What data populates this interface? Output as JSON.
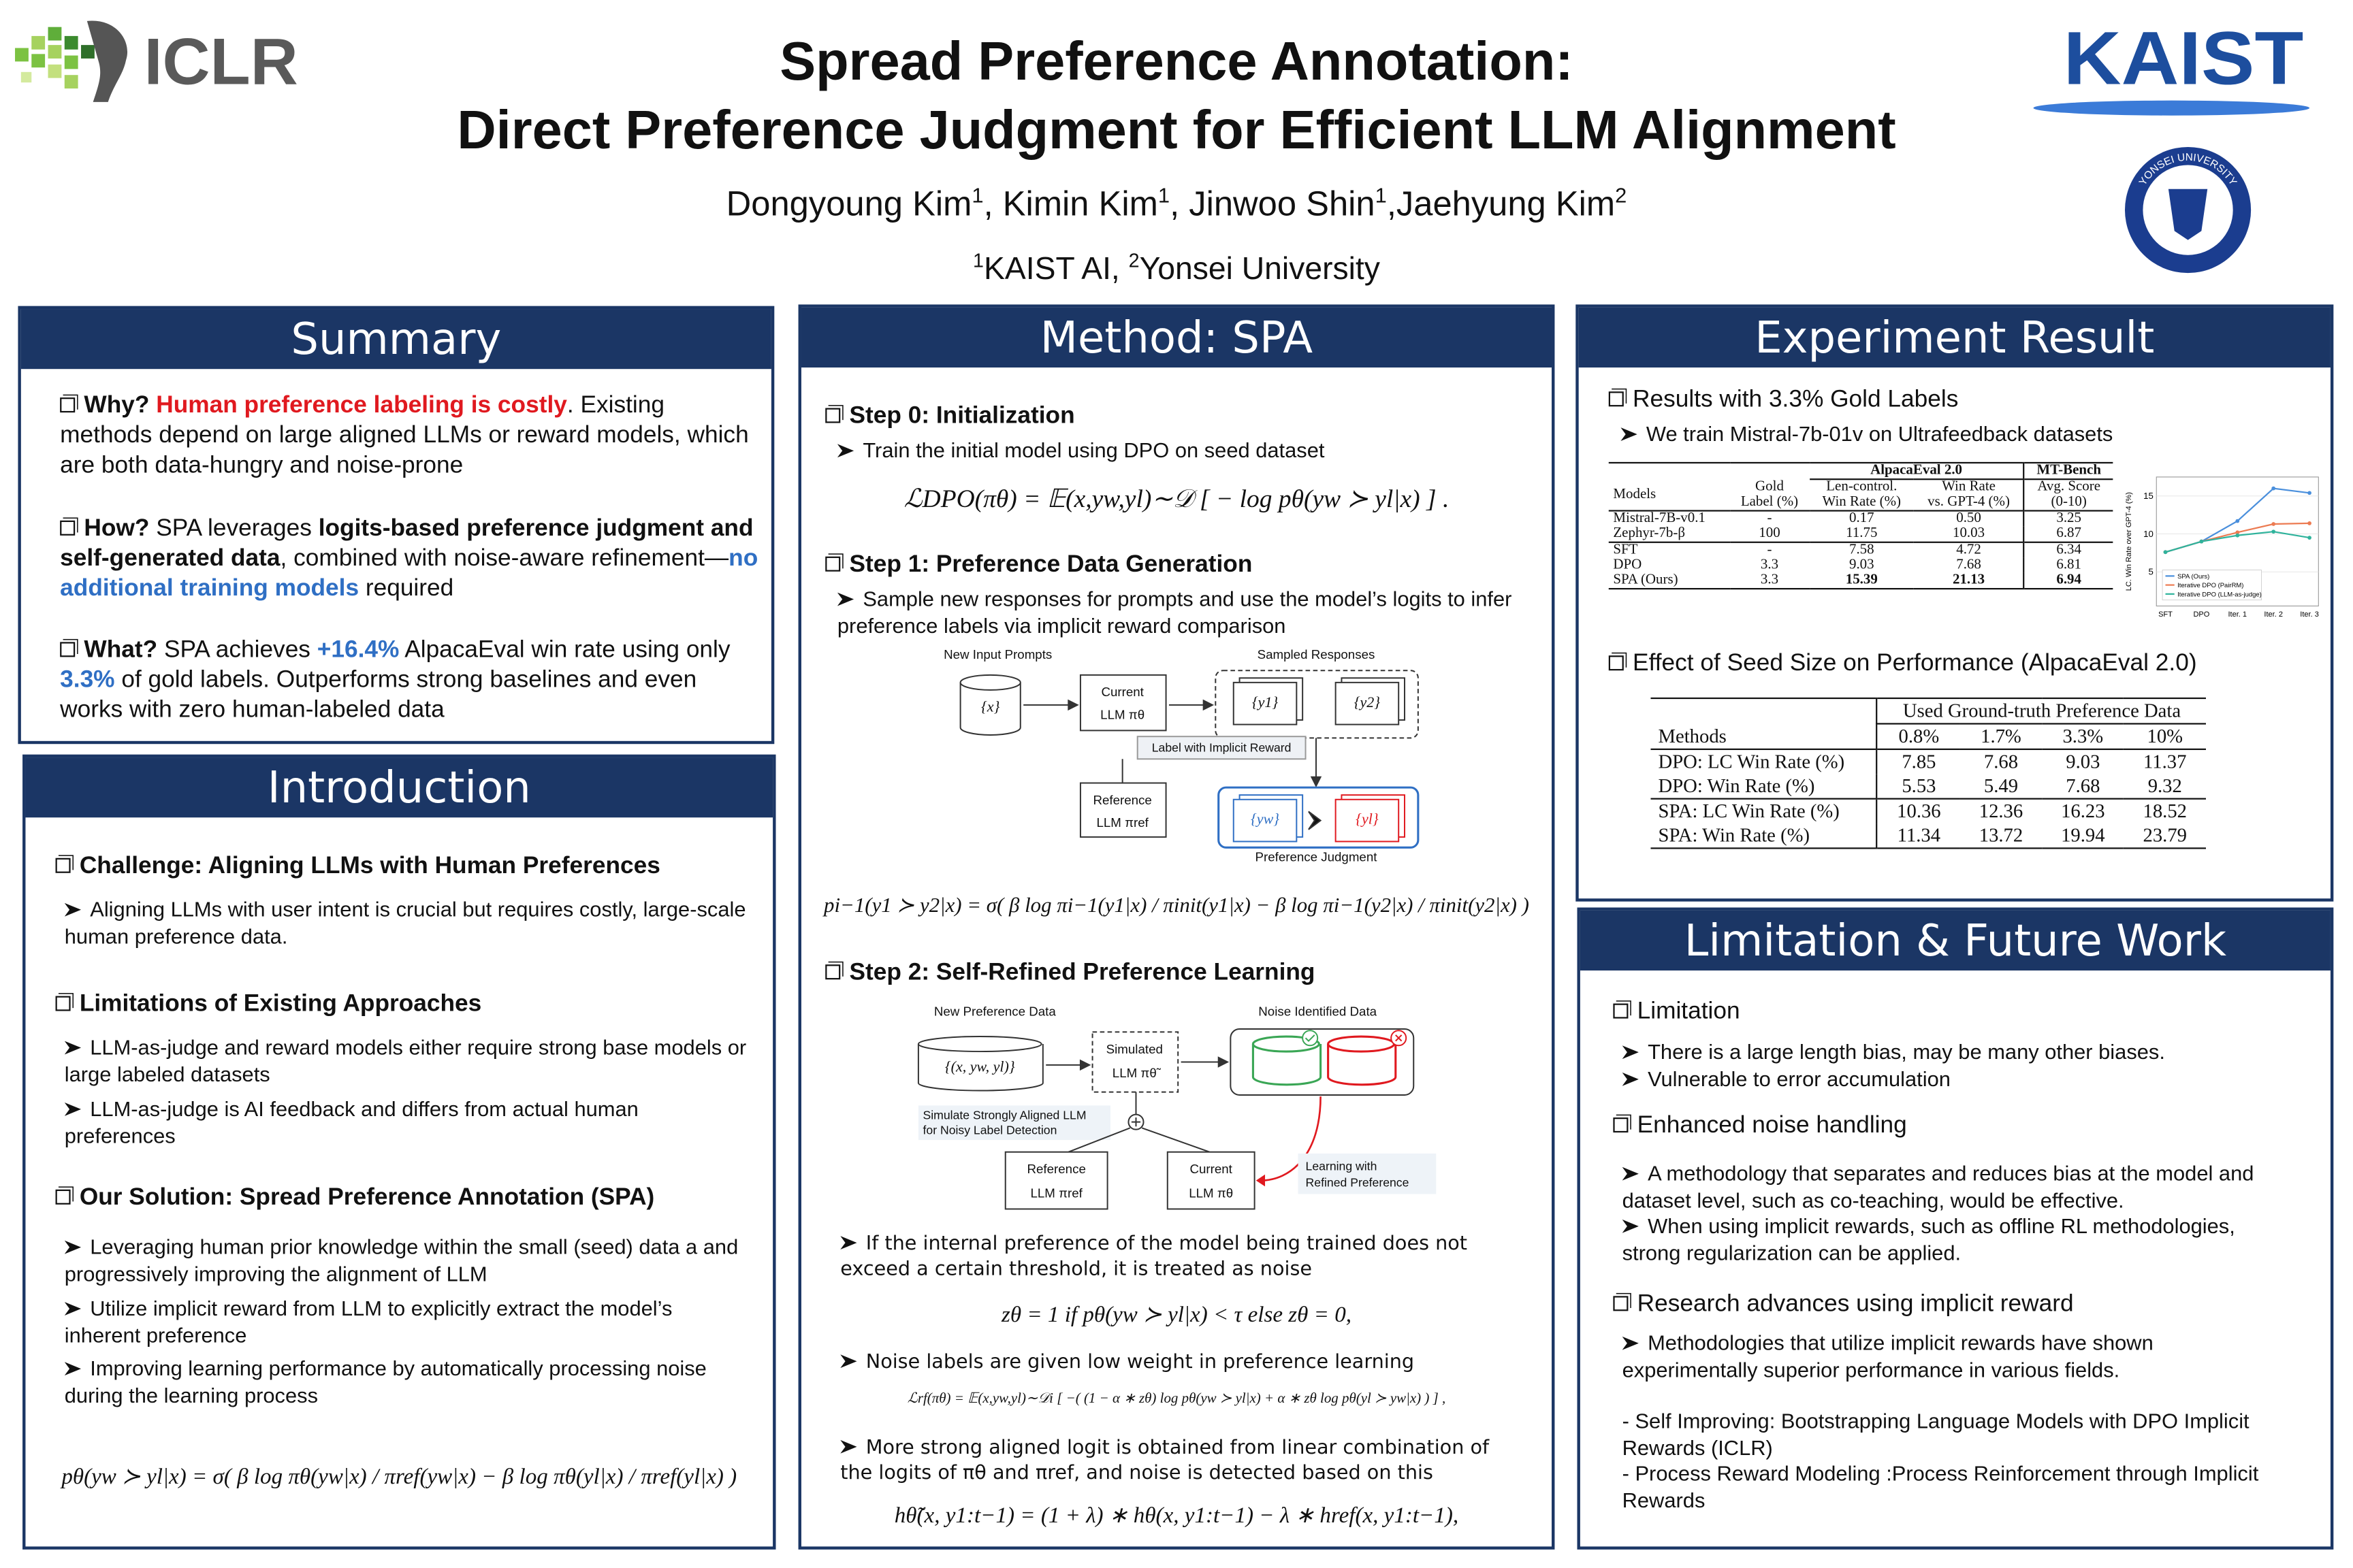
{
  "header": {
    "title": [
      "Spread Preference Annotation:",
      "Direct Preference Judgment for Efficient LLM Alignment"
    ],
    "authors": [
      {
        "name": "Dongyoung Kim",
        "sup": "1"
      },
      {
        "name": ", Kimin Kim",
        "sup": "1"
      },
      {
        "name": ", Jinwoo Shin",
        "sup": "1"
      },
      {
        "name": ",Jaehyung Kim",
        "sup": "2"
      }
    ],
    "affiliations": [
      {
        "sup": "1",
        "name": "KAIST AI, "
      },
      {
        "sup": "2",
        "name": "Yonsei University"
      }
    ]
  },
  "logos": {
    "conference": "ICLR",
    "university1": "KAIST",
    "university2": "YONSEI UNIVERSITY"
  },
  "summary": {
    "heading": "Summary",
    "items": [
      [
        "Why? ",
        "Human preference labeling is costly",
        ". Existing methods depend on large aligned LLMs or reward models, which are both data-hungry and noise-prone"
      ],
      [
        "How?",
        " SPA leverages ",
        "logits-based preference judgment and self-generated data",
        ", combined with noise-aware refinement—",
        "no additional training models",
        " required"
      ],
      [
        "What?",
        " SPA achieves ",
        "+16.4%",
        " AlpacaEval win rate using only ",
        "3.3%",
        " of gold labels. Outperforms strong baselines and even works with zero human-labeled data"
      ]
    ]
  },
  "introduction": {
    "heading": "Introduction",
    "sections": [
      {
        "title": "Challenge: Aligning LLMs with Human Preferences",
        "points": [
          "Aligning LLMs with user intent is crucial but requires costly, large-scale human preference data."
        ]
      },
      {
        "title": "Limitations of Existing Approaches",
        "points": [
          "LLM-as-judge and reward models either require strong base models or large labeled datasets",
          "LLM-as-judge is AI feedback and differs from actual human preferences"
        ]
      },
      {
        "title": "Our Solution: Spread Preference Annotation (SPA)",
        "points": [
          "Leveraging human prior knowledge within the small (seed) data a and progressively improving the alignment of LLM",
          "Utilize implicit reward from LLM to explicitly extract the model’s inherent preference",
          "Improving learning performance by automatically processing noise during the learning process"
        ]
      }
    ],
    "equation": "pθ(yw ≻ yl|x) = σ( β log πθ(yw|x) / πref(yw|x) − β log πθ(yl|x) / πref(yl|x) )"
  },
  "method": {
    "heading": "Method: SPA",
    "step0": {
      "title": "Step 0: Initialization",
      "point": "Train the initial model using DPO on seed dataset",
      "equation": "ℒDPO(πθ) = 𝔼(x,yw,yl)∼𝒟 [ − log pθ(yw ≻ yl|x) ] ."
    },
    "step1": {
      "title": "Step 1:  Preference Data Generation",
      "point": "Sample new responses for prompts and use the model’s logits to infer preference labels via implicit reward comparison",
      "equation": "pi−1(y1 ≻ y2|x) = σ( β log πi−1(y1|x) / πinit(y1|x) − β log πi−1(y2|x) / πinit(y2|x) )",
      "diagram": {
        "prompts": "New Input Prompts",
        "prompt": "{x}",
        "current": [
          "Current",
          "LLM πθ"
        ],
        "sampled": "Sampled Responses",
        "y1": "{y1}",
        "y2": "{y2}",
        "label": "Label with Implicit Reward",
        "reference": [
          "Reference",
          "LLM πref"
        ],
        "yw": "{yw}",
        "yl": "{yl}",
        "judgment": "Preference Judgment"
      }
    },
    "step2": {
      "title": "Step 2: Self-Refined Preference Learning",
      "diagram": {
        "data": "New Preference Data",
        "triple": "{(x, yw, yl)}",
        "simulated": [
          "Simulated",
          "LLM πθ̃"
        ],
        "noise": "Noise Identified Data",
        "simulate": [
          "Simulate Strongly Aligned LLM",
          "for Noisy Label Detection"
        ],
        "reference": [
          "Reference",
          "LLM πref"
        ],
        "current": [
          "Current",
          "LLM πθ"
        ],
        "learning": [
          "Learning with",
          "Refined Preference"
        ]
      },
      "points": [
        {
          "text": "If the internal preference of the model being trained does not exceed a certain threshold, it is treated as noise",
          "equation": "zθ = 1  if  pθ(yw ≻ yl|x) < τ  else  zθ = 0,"
        },
        {
          "text": "Noise labels are given low weight in preference learning",
          "equation": "ℒrf(πθ) = 𝔼(x,yw,yl)∼𝒟i [ −( (1 − α ∗ zθ) log pθ(yw ≻ yl|x) + α ∗ zθ log pθ(yl ≻ yw|x) ) ] ,"
        },
        {
          "text": "More strong aligned logit is obtained from linear combination of the logits of πθ and πref, and noise is detected based on this",
          "equation": "hθ̃(x, y1:t−1) = (1 + λ) ∗ hθ(x, y1:t−1) − λ ∗ href(x, y1:t−1),"
        }
      ]
    }
  },
  "experiment": {
    "heading": "Experiment Result",
    "results_title": "Results with 3.3% Gold Labels",
    "results_point": "We train Mistral-7b-01v on Ultrafeedback datasets",
    "table1": {
      "groups": [
        "AlpacaEval 2.0",
        "MT-Bench"
      ],
      "columns": [
        [
          "Models"
        ],
        [
          "Gold",
          "Label (%)"
        ],
        [
          "Len-control.",
          "Win Rate (%)"
        ],
        [
          "Win Rate",
          "vs. GPT-4 (%)"
        ],
        [
          "Avg. Score",
          "(0-10)"
        ]
      ],
      "rows": [
        [
          "Mistral-7B-v0.1",
          "-",
          "0.17",
          "0.50",
          "3.25"
        ],
        [
          "Zephyr-7b-β",
          "100",
          "11.75",
          "10.03",
          "6.87"
        ],
        [
          "SFT",
          "-",
          "7.58",
          "4.72",
          "6.34"
        ],
        [
          "DPO",
          "3.3",
          "9.03",
          "7.68",
          "6.81"
        ],
        [
          "SPA (Ours)",
          "3.3",
          "15.39",
          "21.13",
          "6.94"
        ]
      ]
    },
    "seed_title": "Effect of Seed Size on Performance (AlpacaEval 2.0)",
    "table2": {
      "group": "Used Ground-truth Preference Data",
      "columns": [
        "Methods",
        "0.8%",
        "1.7%",
        "3.3%",
        "10%"
      ],
      "rows": [
        [
          "DPO: LC Win Rate (%)",
          "7.85",
          "7.68",
          "9.03",
          "11.37"
        ],
        [
          "DPO: Win Rate (%)",
          "5.53",
          "5.49",
          "7.68",
          "9.32"
        ],
        [
          "SPA: LC Win Rate (%)",
          "10.36",
          "12.36",
          "16.23",
          "18.52"
        ],
        [
          "SPA: Win Rate (%)",
          "11.34",
          "13.72",
          "19.94",
          "23.79"
        ]
      ]
    }
  },
  "chart_data": {
    "type": "line",
    "y_label": "LC. Win Rate over GPT-4 (%)",
    "categories": [
      "SFT",
      "DPO",
      "Iter. 1",
      "Iter. 2",
      "Iter. 3"
    ],
    "series": [
      {
        "name": "SPA (Ours)",
        "color": "#4a8fdc",
        "values": [
          7.6,
          9.0,
          11.7,
          16.0,
          15.4
        ]
      },
      {
        "name": "Iterative DPO (PairRM)",
        "color": "#ec7b52",
        "values": [
          7.6,
          9.0,
          10.2,
          11.3,
          11.4
        ]
      },
      {
        "name": "Iterative DPO (LLM-as-judge)",
        "color": "#2fb39c",
        "values": [
          7.6,
          9.0,
          9.8,
          10.3,
          9.5
        ]
      }
    ],
    "ylim": [
      0.5,
      17.5
    ],
    "yticks": [
      5,
      10,
      15
    ],
    "legend": "lower left"
  },
  "limitation": {
    "heading": "Limitation & Future Work",
    "sections": [
      {
        "title": "Limitation",
        "points": [
          "There is a large length bias, may be many other biases.",
          "Vulnerable to error accumulation"
        ]
      },
      {
        "title": "Enhanced noise handling",
        "points": [
          "A methodology that separates and reduces bias at the model and dataset level, such as co-teaching, would be effective.",
          "When using implicit rewards, such as offline RL methodologies, strong regularization can be applied."
        ]
      },
      {
        "title": "Research advances using implicit reward",
        "points": [
          "Methodologies that utilize implicit rewards have shown experimentally superior performance in various fields."
        ]
      }
    ],
    "references": [
      "- Self Improving: Bootstrapping Language Models with DPO Implicit Rewards (ICLR)",
      "- Process Reward Modeling :Process Reinforcement through Implicit Rewards"
    ]
  }
}
